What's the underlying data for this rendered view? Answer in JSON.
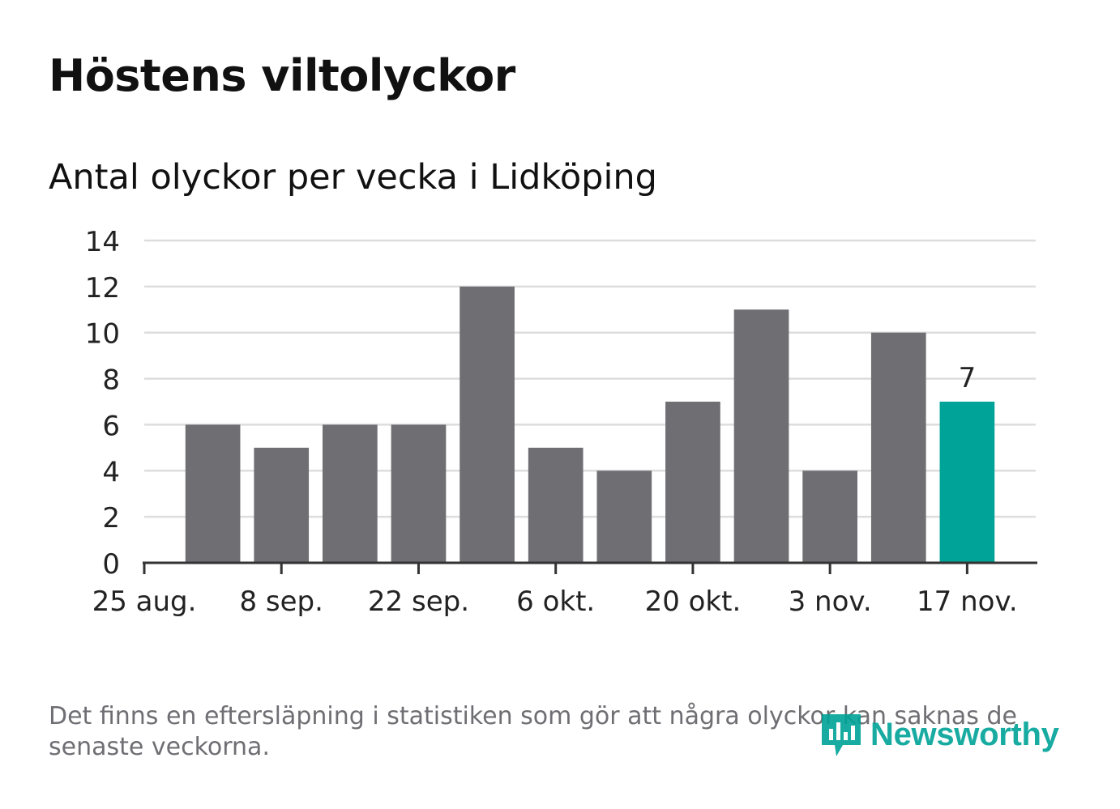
{
  "title": "Höstens viltolyckor",
  "subtitle": "Antal olyckor per vecka i Lidköping",
  "footnote": "Det finns en eftersläpning i statistiken som gör att några olyckor kan saknas de senaste veckorna.",
  "brand": {
    "name": "Newsworthy",
    "icon": "newsworthy-logo-icon"
  },
  "colors": {
    "bar": "#6f6e73",
    "highlight": "#00a397",
    "grid": "#dddddd",
    "axis": "#333333"
  },
  "chart_data": {
    "type": "bar",
    "title": "Antal olyckor per vecka i Lidköping",
    "xlabel": "",
    "ylabel": "",
    "ylim": [
      0,
      14
    ],
    "yticks": [
      0,
      2,
      4,
      6,
      8,
      10,
      12,
      14
    ],
    "values": [
      6,
      5,
      6,
      6,
      12,
      5,
      4,
      7,
      11,
      4,
      10,
      7
    ],
    "highlight_index": 11,
    "highlight_label": "7",
    "xtick_labels": [
      "25 aug.",
      "8 sep.",
      "22 sep.",
      "6 okt.",
      "20 okt.",
      "3 nov.",
      "17 nov."
    ],
    "xtick_positions": [
      0,
      2,
      4,
      6,
      8,
      10,
      12
    ],
    "grid": true
  }
}
